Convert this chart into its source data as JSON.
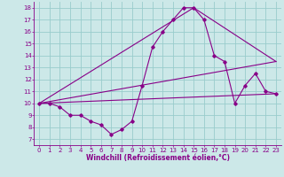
{
  "xlabel": "Windchill (Refroidissement éolien,°C)",
  "background_color": "#cce8e8",
  "grid_color": "#99cccc",
  "line_color": "#880088",
  "xlim": [
    -0.5,
    23.5
  ],
  "ylim": [
    6.5,
    18.5
  ],
  "yticks": [
    7,
    8,
    9,
    10,
    11,
    12,
    13,
    14,
    15,
    16,
    17,
    18
  ],
  "xticks": [
    0,
    1,
    2,
    3,
    4,
    5,
    6,
    7,
    8,
    9,
    10,
    11,
    12,
    13,
    14,
    15,
    16,
    17,
    18,
    19,
    20,
    21,
    22,
    23
  ],
  "series_main": {
    "x": [
      0,
      1,
      2,
      3,
      4,
      5,
      6,
      7,
      8,
      9,
      10,
      11,
      12,
      13,
      14,
      15,
      16,
      17,
      18,
      19,
      20,
      21,
      22,
      23
    ],
    "y": [
      10,
      10,
      9.7,
      9,
      9,
      8.5,
      8.2,
      7.4,
      7.8,
      8.5,
      11.5,
      14.7,
      16.0,
      17.0,
      18.0,
      18.0,
      17.0,
      14.0,
      13.5,
      10.0,
      11.5,
      12.5,
      11.0,
      10.8
    ]
  },
  "series_lines": [
    {
      "x": [
        0,
        23
      ],
      "y": [
        10,
        10.8
      ]
    },
    {
      "x": [
        0,
        15,
        23
      ],
      "y": [
        10,
        18,
        13.5
      ]
    },
    {
      "x": [
        0,
        23
      ],
      "y": [
        10,
        13.5
      ]
    }
  ]
}
